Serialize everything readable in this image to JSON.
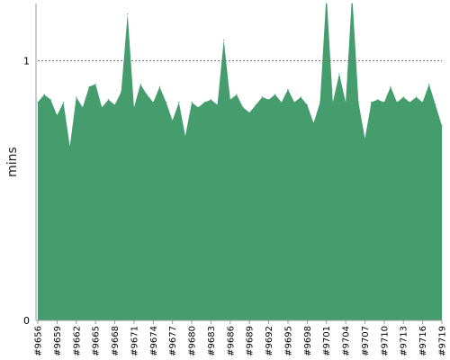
{
  "chart_data": {
    "type": "area",
    "title": "",
    "xlabel": "",
    "ylabel": "mins",
    "ylim": [
      0,
      1.22
    ],
    "yticks": [
      {
        "value": 0,
        "label": "0"
      },
      {
        "value": 1,
        "label": "1"
      }
    ],
    "reference_line": {
      "value": 1,
      "style": "dotted"
    },
    "grid": false,
    "legend": "none",
    "colors": {
      "fill": "#459d6e",
      "axis": "#999999",
      "reference": "#777777"
    },
    "x": [
      "#9656",
      "#9657",
      "#9658",
      "#9659",
      "#9660",
      "#9661",
      "#9662",
      "#9663",
      "#9664",
      "#9665",
      "#9666",
      "#9667",
      "#9668",
      "#9669",
      "#9670",
      "#9671",
      "#9672",
      "#9673",
      "#9674",
      "#9675",
      "#9676",
      "#9677",
      "#9678",
      "#9679",
      "#9680",
      "#9681",
      "#9682",
      "#9683",
      "#9684",
      "#9685",
      "#9686",
      "#9687",
      "#9688",
      "#9689",
      "#9690",
      "#9691",
      "#9692",
      "#9693",
      "#9694",
      "#9695",
      "#9696",
      "#9697",
      "#9698",
      "#9699",
      "#9700",
      "#9701",
      "#9702",
      "#9703",
      "#9704",
      "#9705",
      "#9706",
      "#9707",
      "#9708",
      "#9709",
      "#9710",
      "#9711",
      "#9712",
      "#9713",
      "#9714",
      "#9715",
      "#9716",
      "#9717",
      "#9718",
      "#9719"
    ],
    "values": [
      0.84,
      0.87,
      0.85,
      0.79,
      0.84,
      0.67,
      0.86,
      0.82,
      0.9,
      0.91,
      0.82,
      0.85,
      0.83,
      0.88,
      1.18,
      0.82,
      0.91,
      0.87,
      0.84,
      0.9,
      0.84,
      0.77,
      0.84,
      0.71,
      0.84,
      0.82,
      0.84,
      0.85,
      0.83,
      1.08,
      0.85,
      0.87,
      0.82,
      0.8,
      0.83,
      0.86,
      0.85,
      0.87,
      0.84,
      0.89,
      0.84,
      0.86,
      0.83,
      0.76,
      0.84,
      1.26,
      0.84,
      0.95,
      0.84,
      1.26,
      0.84,
      0.7,
      0.84,
      0.85,
      0.84,
      0.9,
      0.84,
      0.86,
      0.84,
      0.86,
      0.84,
      0.91,
      0.83,
      0.75
    ],
    "xtick_labels": [
      "#9656",
      "#9659",
      "#9662",
      "#9665",
      "#9668",
      "#9671",
      "#9674",
      "#9677",
      "#9680",
      "#9683",
      "#9686",
      "#9689",
      "#9692",
      "#9695",
      "#9698",
      "#9701",
      "#9704",
      "#9707",
      "#9710",
      "#9713",
      "#9716",
      "#9719"
    ]
  }
}
